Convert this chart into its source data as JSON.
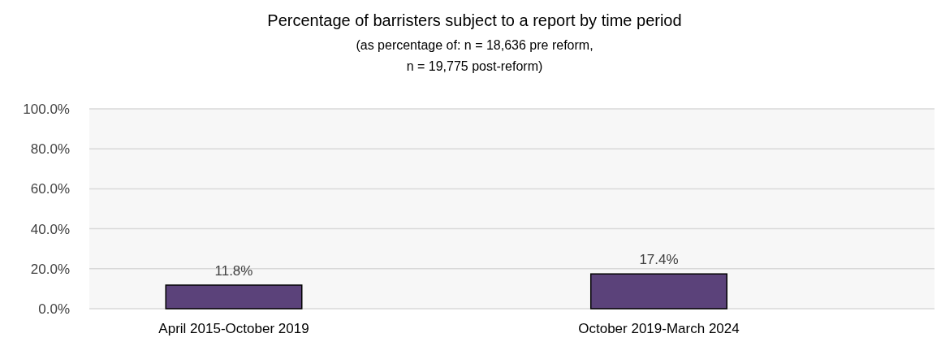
{
  "chart_data": {
    "type": "bar",
    "title": "Percentage of barristers subject to a report by time period",
    "subtitle": "(as percentage of: n = 18,636 pre reform, n = 19,775 post-reform)",
    "categories": [
      "April 2015-October 2019",
      "October 2019-March 2024"
    ],
    "values": [
      11.8,
      17.4
    ],
    "color": "#5b427a",
    "value_labels": [
      "11.8%",
      "17.4%"
    ],
    "ylim": [
      0,
      100
    ],
    "yticks": [
      {
        "value": 0,
        "label": "0.0%"
      },
      {
        "value": 20,
        "label": "20.0%"
      },
      {
        "value": 40,
        "label": "40.0%"
      },
      {
        "value": 60,
        "label": "60.0%"
      },
      {
        "value": 80,
        "label": "80.0%"
      },
      {
        "value": 100,
        "label": "100.0%"
      }
    ],
    "grid": "y"
  }
}
